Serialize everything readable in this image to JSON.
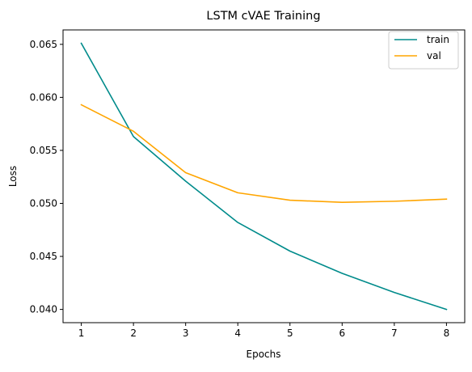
{
  "chart_data": {
    "type": "line",
    "title": "LSTM cVAE Training",
    "xlabel": "Epochs",
    "ylabel": "Loss",
    "x": [
      1,
      2,
      3,
      4,
      5,
      6,
      7,
      8
    ],
    "xticks": [
      "1",
      "2",
      "3",
      "4",
      "5",
      "6",
      "7",
      "8"
    ],
    "yticks": [
      0.04,
      0.045,
      0.05,
      0.055,
      0.06,
      0.065
    ],
    "ytick_labels": [
      "0.040",
      "0.045",
      "0.050",
      "0.055",
      "0.060",
      "0.065"
    ],
    "xlim": [
      0.65,
      8.35
    ],
    "ylim": [
      0.03875,
      0.06636
    ],
    "grid": false,
    "legend_position": "top-right",
    "series": [
      {
        "name": "train",
        "color": "#008b8b",
        "values": [
          0.0651,
          0.0563,
          0.0521,
          0.0482,
          0.0455,
          0.0434,
          0.0416,
          0.04
        ]
      },
      {
        "name": "val",
        "color": "#ffa500",
        "values": [
          0.0593,
          0.0568,
          0.0529,
          0.051,
          0.0503,
          0.0501,
          0.0502,
          0.0504
        ]
      }
    ]
  }
}
